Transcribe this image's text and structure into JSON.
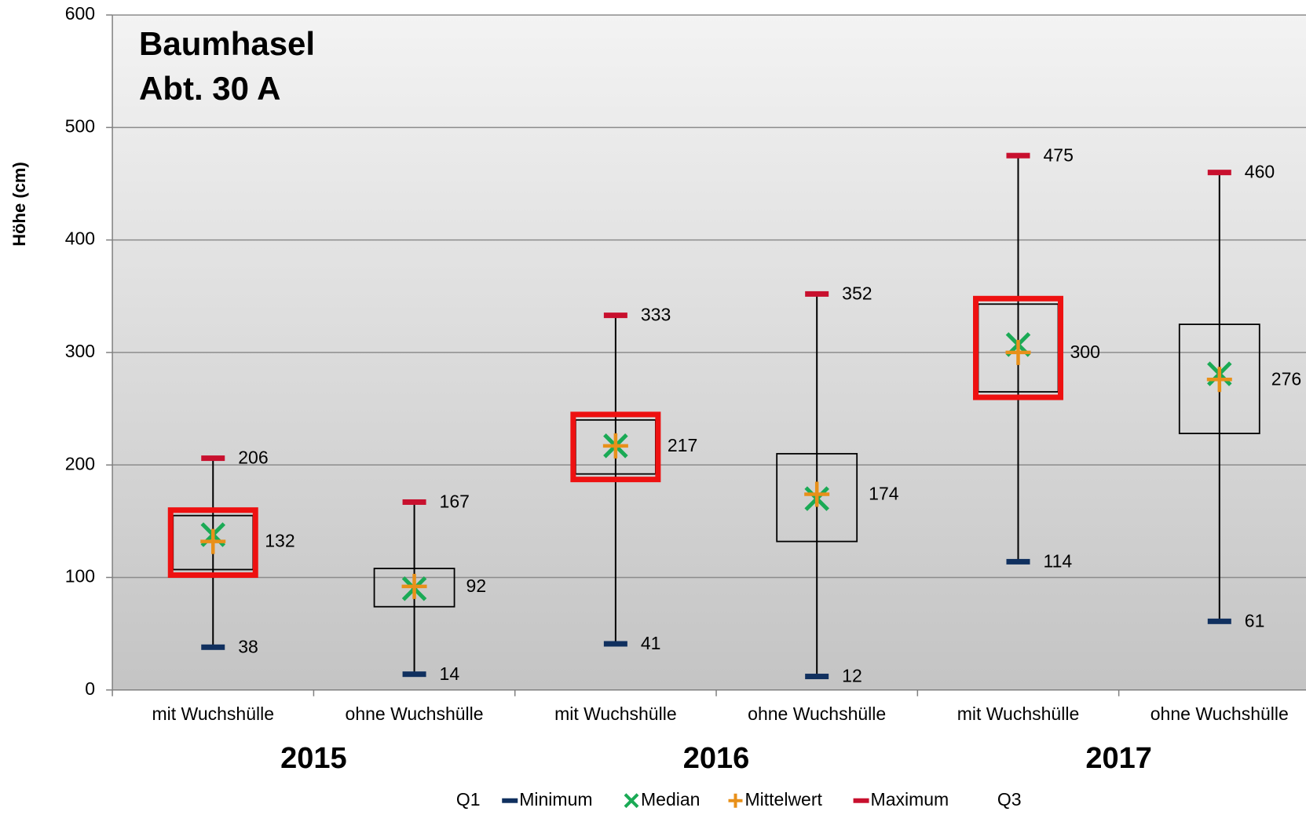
{
  "chart_data": {
    "type": "box",
    "title": "Baumhasel",
    "subtitle": "Abt. 30 A",
    "y_label": "Höhe (cm)",
    "categories": [
      "mit Wuchshülle",
      "ohne Wuchshülle",
      "mit Wuchshülle",
      "ohne Wuchshülle",
      "mit Wuchshülle",
      "ohne Wuchshülle"
    ],
    "groups": [
      "2015",
      "2016",
      "2017"
    ],
    "series": [
      {
        "name": "Q1",
        "values": [
          107,
          74,
          192,
          132,
          265,
          228
        ]
      },
      {
        "name": "Minimum",
        "color": "#10305f",
        "values": [
          38,
          14,
          41,
          12,
          114,
          61
        ]
      },
      {
        "name": "Median",
        "color": "#1aaa55",
        "values": [
          138,
          90,
          217,
          170,
          307,
          281
        ]
      },
      {
        "name": "Mittelwert",
        "color": "#e8901a",
        "values": [
          132,
          92,
          217,
          174,
          300,
          276
        ]
      },
      {
        "name": "Maximum",
        "color": "#c8102e",
        "values": [
          206,
          167,
          333,
          352,
          475,
          460
        ]
      },
      {
        "name": "Q3",
        "values": [
          155,
          108,
          240,
          210,
          343,
          325
        ]
      }
    ],
    "ylim": [
      0,
      600
    ],
    "yticks": [
      0,
      100,
      200,
      300,
      400,
      500,
      600
    ],
    "grid": true
  }
}
